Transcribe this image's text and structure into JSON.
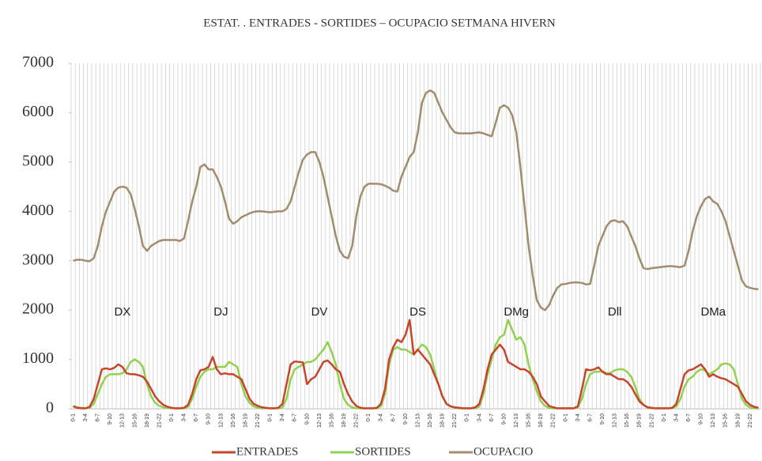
{
  "chart_data": {
    "type": "line",
    "title": "ESTAT. . ENTRADES - SORTIDES – OCUPACIO  SETMANA HIVERN",
    "categories": [
      "0-1",
      null,
      null,
      "3-4",
      null,
      null,
      "6-7",
      null,
      null,
      "9-10",
      null,
      null,
      "12-13",
      null,
      null,
      "15-16",
      null,
      null,
      "18-19",
      null,
      null,
      "21-22",
      null,
      null,
      "0-1",
      null,
      null,
      "3-4",
      null,
      null,
      "6-7",
      null,
      null,
      "9-10",
      null,
      null,
      "12-13",
      null,
      null,
      "15-16",
      null,
      null,
      "18-19",
      null,
      null,
      "21-22",
      null,
      null,
      "0-1",
      null,
      null,
      "3-4",
      null,
      null,
      "6-7",
      null,
      null,
      "9-10",
      null,
      null,
      "12-13",
      null,
      null,
      "15-16",
      null,
      null,
      "18-19",
      null,
      null,
      "21-22",
      null,
      null,
      "0-1",
      null,
      null,
      "3-4",
      null,
      null,
      "6-7",
      null,
      null,
      "9-10",
      null,
      null,
      "12-13",
      null,
      null,
      "15-16",
      null,
      null,
      "18-19",
      null,
      null,
      "21-22",
      null,
      null,
      "0-1",
      null,
      null,
      "3-4",
      null,
      null,
      "6-7",
      null,
      null,
      "9-10",
      null,
      null,
      "12-13",
      null,
      null,
      "15-16",
      null,
      null,
      "18-19",
      null,
      null,
      "21-22",
      null,
      null,
      "0-1",
      null,
      null,
      "3-4",
      null,
      null,
      "6-7",
      null,
      null,
      "9-10",
      null,
      null,
      "12-13",
      null,
      null,
      "15-16",
      null,
      null,
      "18-19",
      null,
      null,
      "21-22",
      null,
      null,
      "0-1",
      null,
      null,
      "3-4",
      null,
      null,
      "6-7",
      null,
      null,
      "9-10",
      null,
      null,
      "12-13",
      null,
      null,
      "15-16",
      null,
      null,
      "18-19",
      null,
      null,
      "21-22",
      null,
      null
    ],
    "annotations": [
      "DX",
      "DJ",
      "DV",
      "DS",
      "DMg",
      "Dll",
      "DMa"
    ],
    "series": [
      {
        "name": "ENTRADES",
        "color": "#c5462b",
        "values": [
          50,
          20,
          10,
          10,
          40,
          200,
          500,
          800,
          820,
          800,
          830,
          900,
          850,
          720,
          700,
          700,
          680,
          650,
          550,
          400,
          250,
          150,
          80,
          40,
          20,
          10,
          10,
          20,
          80,
          300,
          600,
          780,
          800,
          850,
          1050,
          800,
          700,
          720,
          700,
          700,
          650,
          600,
          400,
          200,
          100,
          60,
          30,
          20,
          10,
          10,
          20,
          100,
          500,
          900,
          960,
          950,
          940,
          500,
          600,
          650,
          800,
          950,
          980,
          900,
          800,
          750,
          500,
          300,
          150,
          60,
          20,
          10,
          10,
          10,
          20,
          100,
          400,
          1000,
          1250,
          1400,
          1350,
          1500,
          1800,
          1100,
          1200,
          1100,
          1000,
          900,
          700,
          500,
          250,
          100,
          50,
          30,
          20,
          10,
          10,
          10,
          30,
          100,
          400,
          800,
          1100,
          1200,
          1300,
          1200,
          950,
          900,
          850,
          800,
          800,
          750,
          650,
          500,
          250,
          150,
          60,
          30,
          10,
          10,
          10,
          10,
          10,
          50,
          400,
          800,
          780,
          800,
          840,
          750,
          700,
          700,
          650,
          600,
          600,
          550,
          450,
          300,
          150,
          80,
          30,
          20,
          10,
          10,
          10,
          10,
          20,
          100,
          400,
          700,
          780,
          800,
          850,
          900,
          800,
          650,
          700,
          650,
          620,
          600,
          550,
          500,
          450,
          300,
          150,
          80,
          40,
          20
        ]
      },
      {
        "name": "SORTIDES",
        "color": "#92d050",
        "values": [
          60,
          30,
          20,
          10,
          20,
          100,
          300,
          500,
          650,
          700,
          700,
          700,
          720,
          800,
          950,
          1000,
          950,
          850,
          500,
          250,
          120,
          60,
          30,
          20,
          10,
          10,
          10,
          10,
          40,
          200,
          450,
          650,
          750,
          800,
          800,
          850,
          850,
          850,
          950,
          900,
          850,
          500,
          250,
          120,
          50,
          20,
          10,
          10,
          10,
          10,
          10,
          30,
          200,
          600,
          800,
          850,
          900,
          950,
          950,
          1000,
          1100,
          1200,
          1350,
          1150,
          900,
          500,
          200,
          80,
          30,
          10,
          10,
          10,
          10,
          10,
          10,
          50,
          300,
          900,
          1200,
          1250,
          1200,
          1200,
          1150,
          1100,
          1200,
          1300,
          1250,
          1100,
          800,
          500,
          250,
          100,
          50,
          20,
          10,
          10,
          10,
          10,
          10,
          50,
          300,
          700,
          1000,
          1300,
          1450,
          1500,
          1800,
          1600,
          1400,
          1450,
          1300,
          900,
          600,
          350,
          150,
          60,
          20,
          10,
          10,
          10,
          10,
          10,
          10,
          30,
          200,
          500,
          700,
          750,
          750,
          760,
          720,
          730,
          780,
          800,
          800,
          750,
          650,
          450,
          200,
          80,
          30,
          10,
          10,
          10,
          10,
          10,
          10,
          50,
          200,
          450,
          600,
          650,
          750,
          800,
          780,
          700,
          750,
          800,
          900,
          920,
          900,
          800,
          500,
          200,
          80,
          30,
          10,
          10
        ]
      },
      {
        "name": "OCUPACIO",
        "color": "#a38c6e",
        "values": [
          3000,
          3020,
          3020,
          3000,
          2990,
          3050,
          3300,
          3700,
          4000,
          4200,
          4400,
          4480,
          4500,
          4480,
          4350,
          4050,
          3700,
          3300,
          3200,
          3300,
          3350,
          3400,
          3420,
          3420,
          3420,
          3420,
          3400,
          3450,
          3800,
          4200,
          4500,
          4900,
          4950,
          4850,
          4850,
          4700,
          4500,
          4200,
          3850,
          3750,
          3800,
          3880,
          3920,
          3960,
          3990,
          4000,
          4000,
          3990,
          3980,
          3990,
          4000,
          4000,
          4050,
          4200,
          4500,
          4800,
          5050,
          5150,
          5200,
          5200,
          5000,
          4700,
          4300,
          3900,
          3500,
          3200,
          3080,
          3050,
          3300,
          3900,
          4300,
          4500,
          4560,
          4560,
          4560,
          4550,
          4520,
          4480,
          4420,
          4400,
          4700,
          4900,
          5100,
          5200,
          5600,
          6200,
          6400,
          6450,
          6400,
          6200,
          6000,
          5850,
          5700,
          5600,
          5580,
          5580,
          5580,
          5580,
          5590,
          5600,
          5580,
          5550,
          5520,
          5800,
          6100,
          6150,
          6100,
          5950,
          5600,
          4900,
          4100,
          3300,
          2700,
          2200,
          2050,
          2000,
          2100,
          2300,
          2450,
          2520,
          2530,
          2550,
          2560,
          2560,
          2550,
          2520,
          2530,
          2900,
          3300,
          3500,
          3700,
          3800,
          3820,
          3780,
          3800,
          3700,
          3500,
          3300,
          3050,
          2850,
          2830,
          2850,
          2860,
          2870,
          2880,
          2890,
          2890,
          2880,
          2870,
          2900,
          3200,
          3600,
          3900,
          4100,
          4250,
          4300,
          4200,
          4150,
          4000,
          3800,
          3500,
          3200,
          2900,
          2600,
          2480,
          2450,
          2430,
          2420
        ]
      }
    ],
    "ylim": [
      0,
      7000
    ],
    "yticks": [
      0,
      1000,
      2000,
      3000,
      4000,
      5000,
      6000,
      7000
    ],
    "grid": true,
    "legend": "bottom"
  }
}
